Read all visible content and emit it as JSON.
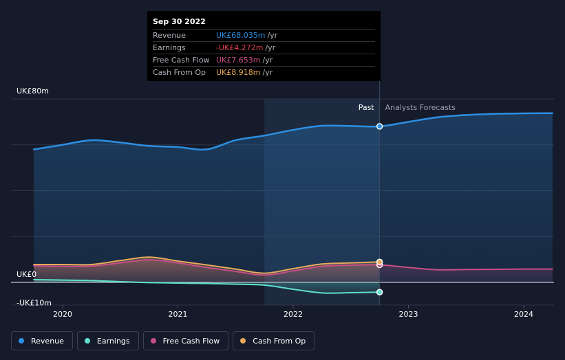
{
  "chart_data": {
    "type": "area",
    "x_range": [
      2019.55,
      2024.25
    ],
    "y_range": [
      -10,
      80
    ],
    "x_ticks": [
      {
        "value": 2020,
        "label": "2020"
      },
      {
        "value": 2021,
        "label": "2021"
      },
      {
        "value": 2022,
        "label": "2022"
      },
      {
        "value": 2023,
        "label": "2023"
      },
      {
        "value": 2024,
        "label": "2024"
      }
    ],
    "y_axis_labels": [
      {
        "value": 80,
        "label": "UK£80m"
      },
      {
        "value": 0,
        "label": "UK£0"
      },
      {
        "value": -10,
        "label": "-UK£10m"
      }
    ],
    "gridlines": [
      80,
      60,
      40,
      20,
      0
    ],
    "past_highlight_start": 2021.75,
    "divider_x": 2022.75,
    "past_label": "Past",
    "forecast_label": "Analysts Forecasts",
    "series": [
      {
        "name": "Revenue",
        "color": "#2d8fe3",
        "x": [
          2019.75,
          2020.0,
          2020.25,
          2020.5,
          2020.75,
          2021.0,
          2021.25,
          2021.5,
          2021.75,
          2022.0,
          2022.25,
          2022.5,
          2022.75,
          2023.0,
          2023.25,
          2023.5,
          2023.75,
          2024.0,
          2024.25
        ],
        "values": [
          58,
          60,
          62,
          61,
          59.5,
          59,
          58,
          62,
          64,
          66.5,
          68.3,
          68.2,
          68.035,
          70,
          72,
          73,
          73.5,
          73.7,
          73.8
        ],
        "forecast_from": 2022.75,
        "fill": true
      },
      {
        "name": "Earnings",
        "color": "#5ee0cf",
        "x": [
          2019.75,
          2020.0,
          2020.25,
          2020.5,
          2020.75,
          2021.0,
          2021.25,
          2021.5,
          2021.75,
          2022.0,
          2022.25,
          2022.5,
          2022.75
        ],
        "values": [
          1.2,
          1.0,
          0.8,
          0.3,
          -0.1,
          -0.3,
          -0.5,
          -0.8,
          -1.2,
          -3.0,
          -4.6,
          -4.5,
          -4.272
        ],
        "fill": true
      },
      {
        "name": "Free Cash Flow",
        "color": "#c94e86",
        "x": [
          2019.75,
          2020.0,
          2020.25,
          2020.5,
          2020.75,
          2021.0,
          2021.25,
          2021.5,
          2021.75,
          2022.0,
          2022.25,
          2022.5,
          2022.75,
          2023.0,
          2023.25,
          2023.5,
          2023.75,
          2024.0,
          2024.25
        ],
        "values": [
          7.2,
          7.0,
          7.1,
          8.5,
          9.8,
          8.5,
          6.5,
          4.8,
          3.2,
          5.0,
          7.0,
          7.5,
          7.653,
          6.5,
          5.5,
          5.6,
          5.7,
          5.8,
          5.8
        ],
        "forecast_from": 2022.75,
        "fill": true
      },
      {
        "name": "Cash From Op",
        "color": "#e8a95b",
        "x": [
          2019.75,
          2020.0,
          2020.25,
          2020.5,
          2020.75,
          2021.0,
          2021.25,
          2021.5,
          2021.75,
          2022.0,
          2022.25,
          2022.5,
          2022.75
        ],
        "values": [
          7.8,
          7.8,
          7.8,
          9.5,
          11.0,
          9.3,
          7.6,
          5.8,
          4.0,
          6.0,
          8.0,
          8.5,
          8.918
        ],
        "fill": true
      }
    ],
    "highlight_x": 2022.75
  },
  "tooltip": {
    "date": "Sep 30 2022",
    "rows": [
      {
        "name": "Revenue",
        "value": "UK£68.035m",
        "unit": "/yr",
        "color": "#2d8fe3"
      },
      {
        "name": "Earnings",
        "value": "-UK£4.272m",
        "unit": "/yr",
        "color": "#e0424b"
      },
      {
        "name": "Free Cash Flow",
        "value": "UK£7.653m",
        "unit": "/yr",
        "color": "#c94e86"
      },
      {
        "name": "Cash From Op",
        "value": "UK£8.918m",
        "unit": "/yr",
        "color": "#e8a95b"
      }
    ]
  },
  "legend": [
    {
      "label": "Revenue",
      "color": "#2d8fe3"
    },
    {
      "label": "Earnings",
      "color": "#5ee0cf"
    },
    {
      "label": "Free Cash Flow",
      "color": "#c94e86"
    },
    {
      "label": "Cash From Op",
      "color": "#e8a95b"
    }
  ]
}
